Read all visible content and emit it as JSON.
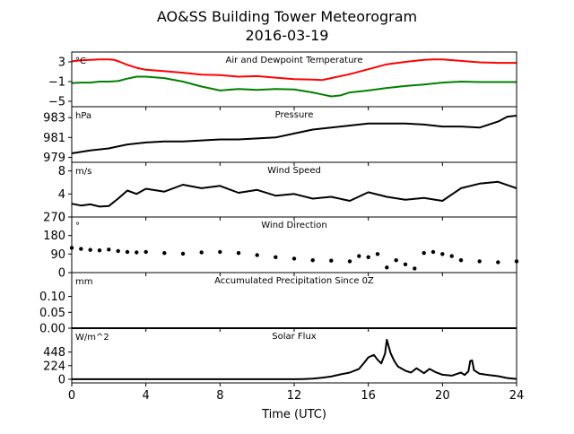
{
  "title": "AO&SS Building Tower Meteorogram",
  "subtitle": "2016-03-19",
  "colors": {
    "temperature": "#ff0000",
    "dewpoint": "#008000",
    "default": "#000000"
  },
  "chart_data": {
    "type": "line",
    "xlabel": "Time (UTC)",
    "xlim": [
      0,
      24
    ],
    "xticks": [
      0,
      4,
      8,
      12,
      16,
      20,
      24
    ],
    "panels": [
      {
        "name": "Air and Dewpoint Temperature",
        "unit": "°C",
        "ylim": [
          -6.1,
          5.0
        ],
        "yticks": [
          {
            "v": 3,
            "label": "3"
          },
          {
            "v": -1,
            "label": "−1"
          },
          {
            "v": -5,
            "label": "−5"
          }
        ],
        "series": [
          {
            "color": "#ff0000",
            "style": "line",
            "x": [
              0,
              0.5,
              1,
              1.5,
              2,
              2.3,
              2.6,
              3,
              3.5,
              4,
              5,
              6,
              7,
              8,
              9,
              10,
              11,
              12,
              13,
              13.5,
              14,
              15,
              16,
              17,
              18,
              19,
              19.5,
              20,
              21,
              22,
              23,
              24
            ],
            "y": [
              3.1,
              3.3,
              3.4,
              3.5,
              3.5,
              3.4,
              3.0,
              2.4,
              1.8,
              1.4,
              1.1,
              0.8,
              0.4,
              0.3,
              0.0,
              0.1,
              -0.2,
              -0.5,
              -0.6,
              -0.7,
              -0.3,
              0.5,
              1.5,
              2.5,
              3.0,
              3.4,
              3.5,
              3.5,
              3.2,
              2.9,
              2.8,
              2.8
            ]
          },
          {
            "color": "#008000",
            "style": "line",
            "x": [
              0,
              0.5,
              1,
              1.5,
              2,
              2.5,
              3,
              3.5,
              4,
              5,
              6,
              7,
              8,
              9,
              10,
              11,
              12,
              13,
              13.5,
              14,
              14.5,
              15,
              16,
              17,
              18,
              19,
              20,
              21,
              22,
              23,
              24
            ],
            "y": [
              -1.3,
              -1.2,
              -1.2,
              -1.0,
              -1.0,
              -0.9,
              -0.4,
              0.0,
              0.0,
              -0.3,
              -1.0,
              -2.0,
              -2.8,
              -2.5,
              -2.7,
              -2.5,
              -2.6,
              -3.2,
              -3.6,
              -4.0,
              -3.8,
              -3.2,
              -2.8,
              -2.3,
              -1.9,
              -1.6,
              -1.2,
              -1.0,
              -1.1,
              -1.1,
              -1.1
            ]
          }
        ]
      },
      {
        "name": "Pressure",
        "unit": "hPa",
        "ylim": [
          978.5,
          984.1
        ],
        "yticks": [
          {
            "v": 983,
            "label": "983"
          },
          {
            "v": 981,
            "label": "981"
          },
          {
            "v": 979,
            "label": "979"
          }
        ],
        "series": [
          {
            "color": "#000000",
            "style": "line",
            "x": [
              0,
              1,
              2,
              3,
              4,
              5,
              6,
              7,
              8,
              9,
              10,
              11,
              12,
              13,
              14,
              15,
              16,
              17,
              18,
              19,
              20,
              21,
              22,
              23,
              23.5,
              24
            ],
            "y": [
              979.4,
              979.7,
              979.9,
              980.3,
              980.5,
              980.6,
              980.6,
              980.7,
              980.8,
              980.8,
              980.9,
              981.0,
              981.4,
              981.8,
              982.0,
              982.2,
              982.4,
              982.4,
              982.4,
              982.3,
              982.1,
              982.1,
              982.0,
              982.6,
              983.1,
              983.2
            ]
          }
        ]
      },
      {
        "name": "Wind Speed",
        "unit": "m/s",
        "ylim": [
          0,
          9.5
        ],
        "yticks": [
          {
            "v": 8,
            "label": "8"
          },
          {
            "v": 4,
            "label": "4"
          },
          {
            "v": 0,
            "label": "0"
          }
        ],
        "series": [
          {
            "color": "#000000",
            "style": "line",
            "x": [
              0,
              0.5,
              1,
              1.5,
              2,
              2.5,
              3,
              3.5,
              4,
              5,
              6,
              7,
              8,
              9,
              10,
              11,
              12,
              13,
              14,
              15,
              16,
              17,
              18,
              19,
              20,
              21,
              22,
              23,
              24
            ],
            "y": [
              2.3,
              2.0,
              2.2,
              1.8,
              1.9,
              3.2,
              4.6,
              4.0,
              4.9,
              4.4,
              5.6,
              5.0,
              5.4,
              4.2,
              4.7,
              3.7,
              4.0,
              3.2,
              3.5,
              2.8,
              4.3,
              3.5,
              3.0,
              3.3,
              2.8,
              5.0,
              5.8,
              6.1,
              5.0
            ]
          }
        ]
      },
      {
        "name": "Wind Direction",
        "unit": "°",
        "ylim": [
          0,
          270
        ],
        "yticks": [
          {
            "v": 270,
            "label": "270"
          },
          {
            "v": 180,
            "label": "180"
          },
          {
            "v": 90,
            "label": "90"
          },
          {
            "v": 0,
            "label": "0"
          }
        ],
        "series": [
          {
            "color": "#000000",
            "style": "dots",
            "x": [
              0,
              0.5,
              1,
              1.5,
              2,
              2.5,
              3,
              3.5,
              4,
              5,
              6,
              7,
              8,
              9,
              10,
              11,
              12,
              13,
              14,
              15,
              15.5,
              16,
              16.5,
              17,
              17.5,
              18,
              18.5,
              19,
              19.5,
              20,
              20.5,
              21,
              22,
              23,
              24
            ],
            "y": [
              120,
              115,
              110,
              108,
              112,
              105,
              100,
              98,
              100,
              95,
              92,
              98,
              100,
              95,
              85,
              75,
              68,
              60,
              58,
              55,
              80,
              75,
              90,
              25,
              60,
              40,
              20,
              95,
              100,
              90,
              80,
              60,
              55,
              50,
              55
            ]
          }
        ]
      },
      {
        "name": "Accumulated Precipitation Since 0Z",
        "unit": "mm",
        "ylim": [
          0,
          0.175
        ],
        "yticks": [
          {
            "v": 0.1,
            "label": "0.10"
          },
          {
            "v": 0.05,
            "label": "0.05"
          },
          {
            "v": 0.0,
            "label": "0.00"
          }
        ],
        "series": [
          {
            "color": "#000000",
            "style": "line",
            "x": [
              0,
              24
            ],
            "y": [
              0,
              0
            ]
          }
        ]
      },
      {
        "name": "Solar Flux",
        "unit": "W/m^2",
        "ylim": [
          -60,
          840
        ],
        "yticks": [
          {
            "v": 448,
            "label": "448"
          },
          {
            "v": 224,
            "label": "224"
          },
          {
            "v": 0,
            "label": "0"
          }
        ],
        "series": [
          {
            "color": "#000000",
            "style": "line",
            "x": [
              0,
              12,
              12.5,
              13,
              13.5,
              14,
              14.5,
              15,
              15.5,
              15.8,
              16,
              16.3,
              16.5,
              16.7,
              16.9,
              17.0,
              17.2,
              17.4,
              17.6,
              18,
              18.3,
              18.6,
              19,
              19.3,
              19.6,
              20,
              20.5,
              21,
              21.2,
              21.4,
              21.5,
              21.6,
              21.7,
              22,
              22.5,
              23,
              23.5,
              24
            ],
            "y": [
              0,
              0,
              4,
              10,
              25,
              45,
              80,
              110,
              170,
              280,
              360,
              400,
              320,
              260,
              420,
              650,
              430,
              300,
              210,
              140,
              110,
              180,
              100,
              170,
              120,
              75,
              60,
              110,
              70,
              130,
              300,
              310,
              150,
              90,
              70,
              50,
              20,
              5
            ]
          }
        ]
      }
    ]
  }
}
